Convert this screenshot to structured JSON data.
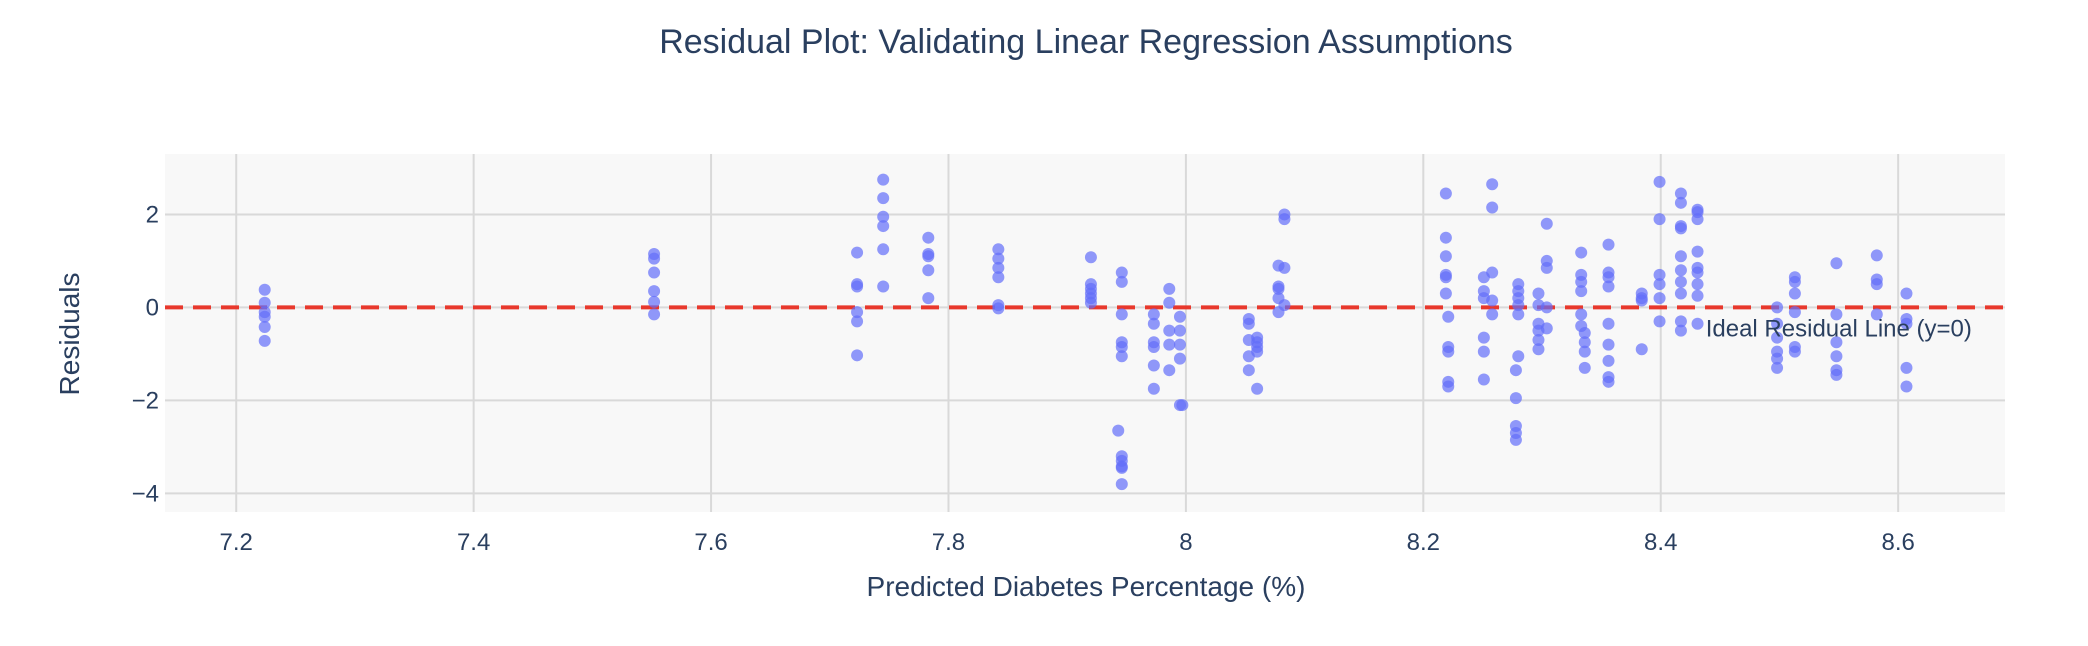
{
  "chart_data": {
    "type": "scatter",
    "title": "Residual Plot: Validating Linear Regression Assumptions",
    "xlabel": "Predicted Diabetes Percentage (%)",
    "ylabel": "Residuals",
    "xlim": [
      7.14,
      8.69
    ],
    "ylim": [
      -4.4,
      3.3
    ],
    "x_ticks": [
      7.2,
      7.4,
      7.6,
      7.8,
      8,
      8.2,
      8.4,
      8.6
    ],
    "x_tick_labels": [
      "7.2",
      "7.4",
      "7.6",
      "7.8",
      "8",
      "8.2",
      "8.4",
      "8.6"
    ],
    "y_ticks": [
      -4,
      -2,
      0,
      2
    ],
    "y_tick_labels": [
      "−4",
      "−2",
      "0",
      "2"
    ],
    "grid": true,
    "colors": {
      "points": "#636efa",
      "reference_line": "#e8382c",
      "plot_background": "#f8f8f8",
      "grid": "#d9d9d9",
      "text": "#2a3f5f"
    },
    "reference_line": {
      "y": 0,
      "style": "dashed"
    },
    "annotations": [
      {
        "text": "Ideal Residual Line (y=0)",
        "x": 8.55,
        "y": -0.45
      }
    ],
    "points": [
      [
        7.224,
        0.38
      ],
      [
        7.224,
        0.1
      ],
      [
        7.224,
        -0.1
      ],
      [
        7.224,
        -0.2
      ],
      [
        7.224,
        -0.42
      ],
      [
        7.224,
        -0.72
      ],
      [
        7.552,
        1.15
      ],
      [
        7.552,
        1.05
      ],
      [
        7.552,
        0.75
      ],
      [
        7.552,
        0.35
      ],
      [
        7.552,
        0.12
      ],
      [
        7.552,
        -0.15
      ],
      [
        7.723,
        1.18
      ],
      [
        7.723,
        0.5
      ],
      [
        7.723,
        0.45
      ],
      [
        7.723,
        -0.1
      ],
      [
        7.723,
        -0.3
      ],
      [
        7.723,
        -1.03
      ],
      [
        7.745,
        2.75
      ],
      [
        7.745,
        2.35
      ],
      [
        7.745,
        1.95
      ],
      [
        7.745,
        1.75
      ],
      [
        7.745,
        1.25
      ],
      [
        7.745,
        0.45
      ],
      [
        7.783,
        1.5
      ],
      [
        7.783,
        1.15
      ],
      [
        7.783,
        1.1
      ],
      [
        7.783,
        0.8
      ],
      [
        7.783,
        0.2
      ],
      [
        7.842,
        1.25
      ],
      [
        7.842,
        1.05
      ],
      [
        7.842,
        0.85
      ],
      [
        7.842,
        0.65
      ],
      [
        7.842,
        0.05
      ],
      [
        7.842,
        -0.02
      ],
      [
        7.92,
        1.08
      ],
      [
        7.92,
        0.5
      ],
      [
        7.92,
        0.4
      ],
      [
        7.92,
        0.3
      ],
      [
        7.92,
        0.2
      ],
      [
        7.92,
        0.1
      ],
      [
        7.946,
        0.75
      ],
      [
        7.946,
        0.55
      ],
      [
        7.946,
        -0.15
      ],
      [
        7.946,
        -0.75
      ],
      [
        7.946,
        -0.85
      ],
      [
        7.946,
        -1.05
      ],
      [
        7.943,
        -2.65
      ],
      [
        7.946,
        -3.2
      ],
      [
        7.946,
        -3.3
      ],
      [
        7.946,
        -3.42
      ],
      [
        7.946,
        -3.45
      ],
      [
        7.946,
        -3.8
      ],
      [
        7.973,
        -0.15
      ],
      [
        7.973,
        -0.35
      ],
      [
        7.973,
        -0.75
      ],
      [
        7.973,
        -0.85
      ],
      [
        7.973,
        -1.25
      ],
      [
        7.973,
        -1.75
      ],
      [
        7.986,
        0.4
      ],
      [
        7.986,
        0.1
      ],
      [
        7.986,
        -0.5
      ],
      [
        7.986,
        -0.8
      ],
      [
        7.986,
        -1.35
      ],
      [
        7.995,
        -0.2
      ],
      [
        7.995,
        -0.5
      ],
      [
        7.995,
        -0.8
      ],
      [
        7.995,
        -1.1
      ],
      [
        7.995,
        -2.1
      ],
      [
        7.997,
        -2.1
      ],
      [
        8.053,
        -0.25
      ],
      [
        8.053,
        -0.35
      ],
      [
        8.053,
        -0.7
      ],
      [
        8.053,
        -1.05
      ],
      [
        8.053,
        -1.35
      ],
      [
        8.06,
        -0.65
      ],
      [
        8.06,
        -0.75
      ],
      [
        8.06,
        -0.85
      ],
      [
        8.06,
        -0.95
      ],
      [
        8.06,
        -1.75
      ],
      [
        8.078,
        0.9
      ],
      [
        8.078,
        0.45
      ],
      [
        8.078,
        0.4
      ],
      [
        8.078,
        0.2
      ],
      [
        8.078,
        -0.1
      ],
      [
        8.083,
        2.0
      ],
      [
        8.083,
        1.9
      ],
      [
        8.083,
        0.85
      ],
      [
        8.083,
        0.05
      ],
      [
        8.219,
        2.45
      ],
      [
        8.219,
        1.5
      ],
      [
        8.219,
        1.1
      ],
      [
        8.219,
        0.7
      ],
      [
        8.219,
        0.65
      ],
      [
        8.219,
        0.3
      ],
      [
        8.221,
        -0.2
      ],
      [
        8.221,
        -0.85
      ],
      [
        8.221,
        -0.95
      ],
      [
        8.221,
        -1.6
      ],
      [
        8.221,
        -1.7
      ],
      [
        8.251,
        0.65
      ],
      [
        8.251,
        0.35
      ],
      [
        8.251,
        0.2
      ],
      [
        8.251,
        -0.65
      ],
      [
        8.251,
        -0.95
      ],
      [
        8.251,
        -1.55
      ],
      [
        8.258,
        2.65
      ],
      [
        8.258,
        2.15
      ],
      [
        8.258,
        0.75
      ],
      [
        8.258,
        0.15
      ],
      [
        8.258,
        -0.15
      ],
      [
        8.28,
        0.5
      ],
      [
        8.28,
        0.35
      ],
      [
        8.28,
        0.2
      ],
      [
        8.28,
        0.05
      ],
      [
        8.28,
        -0.15
      ],
      [
        8.28,
        -1.05
      ],
      [
        8.278,
        -1.35
      ],
      [
        8.278,
        -1.95
      ],
      [
        8.278,
        -2.55
      ],
      [
        8.278,
        -2.7
      ],
      [
        8.278,
        -2.85
      ],
      [
        8.297,
        0.3
      ],
      [
        8.297,
        0.05
      ],
      [
        8.297,
        -0.35
      ],
      [
        8.297,
        -0.5
      ],
      [
        8.297,
        -0.7
      ],
      [
        8.297,
        -0.9
      ],
      [
        8.304,
        1.8
      ],
      [
        8.304,
        1.0
      ],
      [
        8.304,
        0.85
      ],
      [
        8.304,
        0.0
      ],
      [
        8.304,
        -0.45
      ],
      [
        8.333,
        1.18
      ],
      [
        8.333,
        0.7
      ],
      [
        8.333,
        0.55
      ],
      [
        8.333,
        0.35
      ],
      [
        8.333,
        -0.15
      ],
      [
        8.333,
        -0.4
      ],
      [
        8.336,
        -0.55
      ],
      [
        8.336,
        -0.75
      ],
      [
        8.336,
        -0.95
      ],
      [
        8.336,
        -1.3
      ],
      [
        8.356,
        1.35
      ],
      [
        8.356,
        0.75
      ],
      [
        8.356,
        0.65
      ],
      [
        8.356,
        0.45
      ],
      [
        8.356,
        -0.35
      ],
      [
        8.356,
        -0.8
      ],
      [
        8.356,
        -1.15
      ],
      [
        8.356,
        -1.5
      ],
      [
        8.356,
        -1.6
      ],
      [
        8.384,
        0.3
      ],
      [
        8.384,
        0.2
      ],
      [
        8.384,
        0.15
      ],
      [
        8.384,
        -0.9
      ],
      [
        8.399,
        2.7
      ],
      [
        8.399,
        1.9
      ],
      [
        8.399,
        0.7
      ],
      [
        8.399,
        0.5
      ],
      [
        8.399,
        0.2
      ],
      [
        8.399,
        -0.3
      ],
      [
        8.417,
        2.45
      ],
      [
        8.417,
        2.25
      ],
      [
        8.417,
        1.75
      ],
      [
        8.417,
        1.7
      ],
      [
        8.417,
        1.1
      ],
      [
        8.417,
        0.8
      ],
      [
        8.417,
        0.55
      ],
      [
        8.417,
        0.3
      ],
      [
        8.417,
        -0.3
      ],
      [
        8.417,
        -0.5
      ],
      [
        8.431,
        2.1
      ],
      [
        8.431,
        2.05
      ],
      [
        8.431,
        1.9
      ],
      [
        8.431,
        1.2
      ],
      [
        8.431,
        0.85
      ],
      [
        8.431,
        0.75
      ],
      [
        8.431,
        0.5
      ],
      [
        8.431,
        0.25
      ],
      [
        8.431,
        -0.35
      ],
      [
        8.498,
        0.0
      ],
      [
        8.498,
        -0.35
      ],
      [
        8.498,
        -0.65
      ],
      [
        8.498,
        -0.95
      ],
      [
        8.498,
        -1.1
      ],
      [
        8.498,
        -1.3
      ],
      [
        8.513,
        0.65
      ],
      [
        8.513,
        0.55
      ],
      [
        8.513,
        0.3
      ],
      [
        8.513,
        -0.1
      ],
      [
        8.513,
        -0.85
      ],
      [
        8.513,
        -0.95
      ],
      [
        8.548,
        0.95
      ],
      [
        8.548,
        -0.15
      ],
      [
        8.548,
        -0.75
      ],
      [
        8.548,
        -1.05
      ],
      [
        8.548,
        -1.35
      ],
      [
        8.548,
        -1.45
      ],
      [
        8.582,
        1.12
      ],
      [
        8.582,
        0.6
      ],
      [
        8.582,
        0.5
      ],
      [
        8.582,
        -0.15
      ],
      [
        8.607,
        0.3
      ],
      [
        8.607,
        -0.25
      ],
      [
        8.607,
        -0.35
      ],
      [
        8.607,
        -1.3
      ],
      [
        8.607,
        -1.7
      ]
    ]
  }
}
